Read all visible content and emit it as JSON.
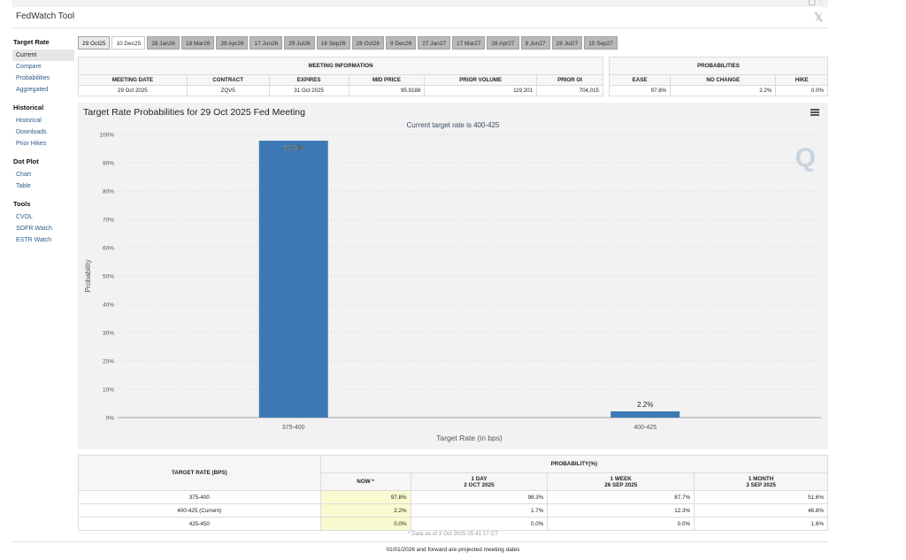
{
  "app": {
    "title": "FedWatch Tool"
  },
  "sidebar": {
    "sections": [
      {
        "heading": "Target Rate",
        "items": [
          {
            "label": "Current",
            "active": true
          },
          {
            "label": "Compare"
          },
          {
            "label": "Probabilities"
          },
          {
            "label": "Aggregated"
          }
        ]
      },
      {
        "heading": "Historical",
        "items": [
          {
            "label": "Historical"
          },
          {
            "label": "Downloads"
          },
          {
            "label": "Prior Hikes"
          }
        ]
      },
      {
        "heading": "Dot Plot",
        "items": [
          {
            "label": "Chart"
          },
          {
            "label": "Table"
          }
        ]
      },
      {
        "heading": "Tools",
        "items": [
          {
            "label": "CVOL"
          },
          {
            "label": "SOFR Watch"
          },
          {
            "label": "ESTR Watch"
          }
        ]
      }
    ]
  },
  "tabs": [
    "29 Oct25",
    "10 Dec25",
    "28 Jan26",
    "18 Mar26",
    "29 Apr26",
    "17 Jun26",
    "29 Jul26",
    "16 Sep26",
    "28 Oct26",
    "9 Dec26",
    "27 Jan27",
    "17 Mar27",
    "28 Apr27",
    "9 Jun27",
    "28 Jul27",
    "15 Sep27"
  ],
  "meeting_info": {
    "heading": "MEETING INFORMATION",
    "headers": [
      "MEETING DATE",
      "CONTRACT",
      "EXPIRES",
      "MID PRICE",
      "PRIOR VOLUME",
      "PRIOR OI"
    ],
    "row": [
      "29 Oct 2025",
      "ZQV5",
      "31 Oct 2025",
      "95.9188",
      "119,201",
      "704,015"
    ]
  },
  "probabilities": {
    "heading": "PROBABILITIES",
    "headers": [
      "EASE",
      "NO CHANGE",
      "HIKE"
    ],
    "row": [
      "97.8%",
      "2.2%",
      "0.0%"
    ]
  },
  "chart": {
    "title": "Target Rate Probabilities for 29 Oct 2025 Fed Meeting",
    "subtitle": "Current target rate is 400-425",
    "logo_text": "Q",
    "menu_icon": "hamburger-menu-icon"
  },
  "chart_data": {
    "type": "bar",
    "title": "Target Rate Probabilities for 29 Oct 2025 Fed Meeting",
    "subtitle": "Current target rate is 400-425",
    "categories": [
      "375-400",
      "400-425"
    ],
    "values": [
      97.8,
      2.2
    ],
    "data_labels": [
      "97.8%",
      "2.2%"
    ],
    "xlabel": "Target Rate (in bps)",
    "ylabel": "Probability",
    "ylim": [
      0,
      100
    ],
    "yticks": [
      "0%",
      "10%",
      "20%",
      "30%",
      "40%",
      "50%",
      "60%",
      "70%",
      "80%",
      "90%",
      "100%"
    ],
    "grid": true,
    "bar_color": "#3d7ab5"
  },
  "bottom_table": {
    "col_target": "TARGET RATE (BPS)",
    "group": "PROBABILITY(%)",
    "cols": [
      {
        "line1": "NOW *",
        "line2": ""
      },
      {
        "line1": "1 DAY",
        "line2": "2 OCT 2025"
      },
      {
        "line1": "1 WEEK",
        "line2": "26 SEP 2025"
      },
      {
        "line1": "1 MONTH",
        "line2": "3 SEP 2025"
      }
    ],
    "rows": [
      {
        "rate": "375-400",
        "values": [
          "97.8%",
          "98.3%",
          "87.7%",
          "51.6%"
        ]
      },
      {
        "rate": "400-425 (Current)",
        "values": [
          "2.2%",
          "1.7%",
          "12.3%",
          "46.8%"
        ]
      },
      {
        "rate": "425-450",
        "values": [
          "0.0%",
          "0.0%",
          "0.0%",
          "1.6%"
        ]
      }
    ],
    "footnote": "* Data as of 3 Oct 2025 05:41:17 CT"
  },
  "footer": {
    "note": "01/01/2026 and forward are projected meeting dates"
  }
}
